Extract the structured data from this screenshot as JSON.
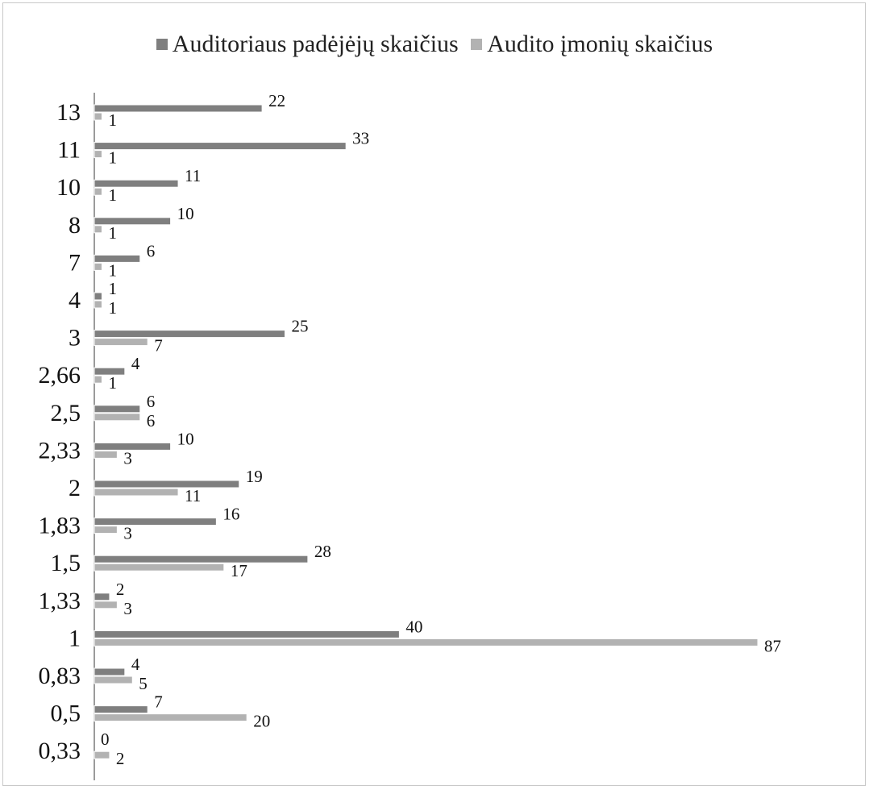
{
  "chart_data": {
    "type": "bar",
    "orientation": "horizontal",
    "categories": [
      "13",
      "11",
      "10",
      "8",
      "7",
      "4",
      "3",
      "2,66",
      "2,5",
      "2,33",
      "2",
      "1,83",
      "1,5",
      "1,33",
      "1",
      "0,83",
      "0,5",
      "0,33"
    ],
    "series": [
      {
        "name": "Auditoriaus padėjėjų skaičius",
        "color": "#7f7f7f",
        "values": [
          22,
          33,
          11,
          10,
          6,
          1,
          25,
          4,
          6,
          10,
          19,
          16,
          28,
          2,
          40,
          4,
          7,
          0
        ]
      },
      {
        "name": "Audito įmonių skaičius",
        "color": "#b2b2b2",
        "values": [
          1,
          1,
          1,
          1,
          1,
          1,
          7,
          1,
          6,
          3,
          11,
          3,
          17,
          3,
          87,
          5,
          20,
          2
        ]
      }
    ],
    "xlim": [
      0,
      87
    ],
    "legend_position": "top",
    "grid": false,
    "data_labels": true
  }
}
